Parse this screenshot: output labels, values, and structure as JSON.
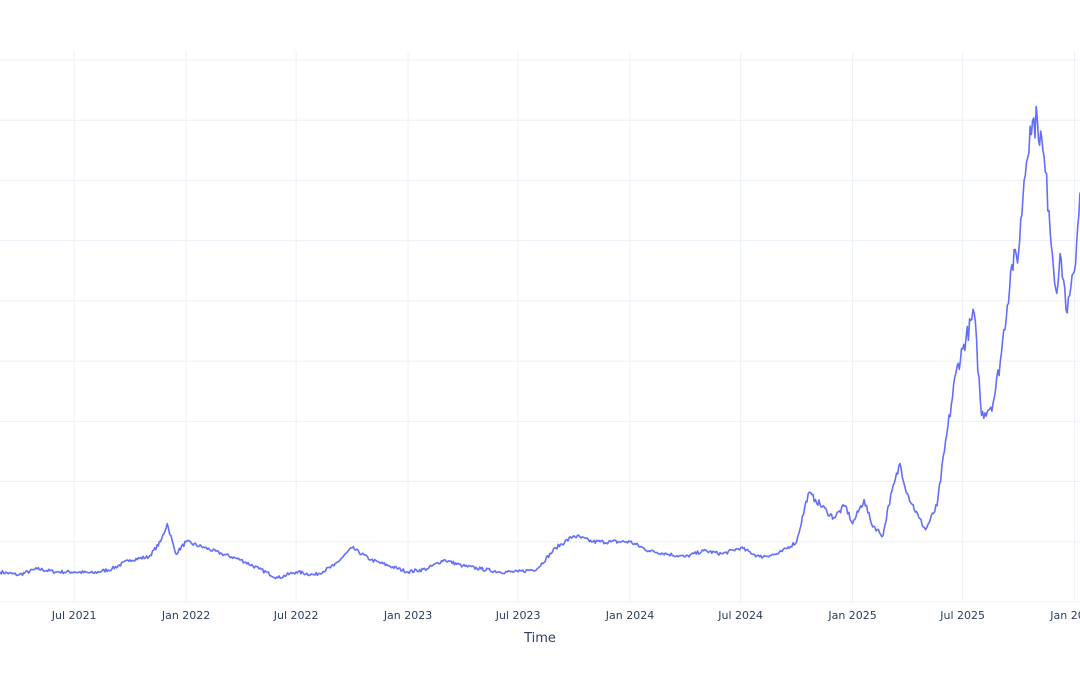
{
  "chart_data": {
    "type": "line",
    "xlabel": "Time",
    "ylabel": "",
    "grid": true,
    "legend": "none",
    "x_range": [
      "2021-03-01",
      "2026-01-10"
    ],
    "y_range": [
      0,
      900
    ],
    "y_gridlines": [
      0,
      100,
      200,
      300,
      400,
      500,
      600,
      700,
      800,
      900
    ],
    "x_ticks": [
      {
        "date": "2021-07-01",
        "label": "Jul 2021"
      },
      {
        "date": "2022-01-01",
        "label": "Jan 2022"
      },
      {
        "date": "2022-07-01",
        "label": "Jul 2022"
      },
      {
        "date": "2023-01-01",
        "label": "Jan 2023"
      },
      {
        "date": "2023-07-01",
        "label": "Jul 2023"
      },
      {
        "date": "2024-01-01",
        "label": "Jan 2024"
      },
      {
        "date": "2024-07-01",
        "label": "Jul 2024"
      },
      {
        "date": "2025-01-01",
        "label": "Jan 2025"
      },
      {
        "date": "2025-07-01",
        "label": "Jul 2025"
      },
      {
        "date": "2026-01-01",
        "label": "Jan 2026"
      }
    ],
    "series": [
      {
        "color": "#636efa",
        "x": [
          "2021-03-01",
          "2021-04-01",
          "2021-05-01",
          "2021-06-01",
          "2021-07-01",
          "2021-08-01",
          "2021-09-01",
          "2021-10-01",
          "2021-11-01",
          "2021-11-20",
          "2021-12-01",
          "2021-12-15",
          "2022-01-01",
          "2022-02-01",
          "2022-03-01",
          "2022-04-01",
          "2022-05-01",
          "2022-06-01",
          "2022-07-01",
          "2022-08-01",
          "2022-09-01",
          "2022-10-01",
          "2022-11-01",
          "2022-12-01",
          "2023-01-01",
          "2023-02-01",
          "2023-03-01",
          "2023-04-01",
          "2023-05-01",
          "2023-06-01",
          "2023-07-01",
          "2023-08-01",
          "2023-09-01",
          "2023-10-01",
          "2023-11-01",
          "2023-12-01",
          "2024-01-01",
          "2024-02-01",
          "2024-03-01",
          "2024-04-01",
          "2024-05-01",
          "2024-06-01",
          "2024-07-01",
          "2024-08-01",
          "2024-09-01",
          "2024-10-01",
          "2024-10-20",
          "2024-11-01",
          "2024-11-20",
          "2024-12-01",
          "2024-12-20",
          "2025-01-01",
          "2025-01-20",
          "2025-02-01",
          "2025-02-20",
          "2025-03-01",
          "2025-03-20",
          "2025-04-01",
          "2025-04-20",
          "2025-05-01",
          "2025-05-20",
          "2025-06-01",
          "2025-06-20",
          "2025-07-01",
          "2025-07-20",
          "2025-08-01",
          "2025-08-20",
          "2025-09-01",
          "2025-09-20",
          "2025-10-01",
          "2025-10-10",
          "2025-10-20",
          "2025-11-01",
          "2025-11-10",
          "2025-11-20",
          "2025-12-01",
          "2025-12-10",
          "2025-12-20",
          "2026-01-01",
          "2026-01-10"
        ],
        "y": [
          50,
          45,
          55,
          50,
          50,
          48,
          55,
          70,
          75,
          100,
          130,
          80,
          100,
          90,
          80,
          70,
          55,
          40,
          50,
          45,
          60,
          90,
          70,
          60,
          50,
          55,
          70,
          60,
          55,
          50,
          50,
          55,
          90,
          110,
          100,
          100,
          100,
          85,
          80,
          75,
          85,
          80,
          90,
          75,
          80,
          100,
          180,
          170,
          150,
          140,
          160,
          130,
          170,
          130,
          110,
          160,
          230,
          180,
          140,
          120,
          160,
          250,
          380,
          420,
          480,
          310,
          330,
          400,
          560,
          580,
          700,
          790,
          800,
          750,
          650,
          520,
          570,
          480,
          550,
          680
        ]
      }
    ]
  }
}
